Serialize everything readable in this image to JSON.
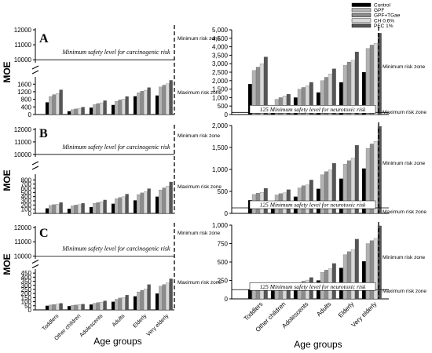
{
  "figure": {
    "ylabel": "MOE",
    "xlabel": "Age groups",
    "panel_letters": [
      "A",
      "B",
      "C"
    ],
    "carc_label": "Minimum safety level for carcinogenic risk",
    "neuro_label": "125 Minimum safety level for neurotoxic risk",
    "zone_min": "Minimum risk zone",
    "zone_max": "Maximum risk zone",
    "age_groups": [
      "Toddlers",
      "Other children",
      "Adolescents",
      "Adults",
      "Elderly",
      "Very elderly"
    ],
    "age_groups_right": [
      "Toddlers",
      "Other children",
      "Adolescents",
      "Adults",
      "Elderly",
      "Very elderly"
    ],
    "legend": [
      "Control",
      "GPF",
      "GPF+TGae",
      "CH 0.6%",
      "PEC 1%"
    ],
    "colors": [
      "#000000",
      "#b3b3b3",
      "#8c8c8c",
      "#d9d9d9",
      "#555555"
    ]
  },
  "chart_data": [
    {
      "type": "bar",
      "title": "A",
      "ylabel": "MOE",
      "categories": [
        "Toddlers",
        "Other children",
        "Adolescents",
        "Adults",
        "Elderly",
        "Very elderly"
      ],
      "axis_break": true,
      "ylim_lower": [
        0,
        1900
      ],
      "ylim_upper": [
        9800,
        12000
      ],
      "yticks": [
        0,
        400,
        800,
        1200,
        1600,
        10000,
        11000,
        12000
      ],
      "reference_line": 10000,
      "series": [
        {
          "name": "Control",
          "values": [
            640,
            170,
            360,
            500,
            960,
            1000
          ]
        },
        {
          "name": "GPF",
          "values": [
            950,
            260,
            520,
            700,
            1150,
            1450
          ]
        },
        {
          "name": "GPF+TGae",
          "values": [
            1050,
            300,
            580,
            770,
            1230,
            1550
          ]
        },
        {
          "name": "CH 0.6%",
          "values": [
            1100,
            330,
            620,
            820,
            1280,
            1620
          ]
        },
        {
          "name": "PEC 1%",
          "values": [
            1300,
            390,
            730,
            950,
            1420,
            1800
          ]
        }
      ]
    },
    {
      "type": "bar",
      "title": "B",
      "ylabel": "MOE",
      "categories": [
        "Toddlers",
        "Other children",
        "Adolescents",
        "Adults",
        "Elderly",
        "Very elderly"
      ],
      "axis_break": true,
      "ylim_lower": [
        0,
        900
      ],
      "ylim_upper": [
        9800,
        12000
      ],
      "yticks": [
        0,
        100,
        200,
        300,
        400,
        500,
        600,
        700,
        800,
        10000,
        11000,
        12000
      ],
      "reference_line": 10000,
      "series": [
        {
          "name": "Control",
          "values": [
            120,
            110,
            150,
            230,
            310,
            400
          ]
        },
        {
          "name": "GPF",
          "values": [
            190,
            180,
            240,
            350,
            450,
            560
          ]
        },
        {
          "name": "GPF+TGae",
          "values": [
            210,
            200,
            260,
            380,
            490,
            610
          ]
        },
        {
          "name": "CH 0.6%",
          "values": [
            220,
            210,
            280,
            400,
            520,
            650
          ]
        },
        {
          "name": "PEC 1%",
          "values": [
            260,
            240,
            320,
            460,
            590,
            750
          ]
        }
      ]
    },
    {
      "type": "bar",
      "title": "C",
      "ylabel": "MOE",
      "categories": [
        "Toddlers",
        "Other children",
        "Adolescents",
        "Adults",
        "Elderly",
        "Very elderly"
      ],
      "axis_break": true,
      "ylim_lower": [
        0,
        480
      ],
      "ylim_upper": [
        9800,
        12000
      ],
      "yticks": [
        0,
        50,
        100,
        150,
        200,
        250,
        300,
        350,
        400,
        450,
        10000,
        11000,
        12000
      ],
      "reference_line": 10000,
      "series": [
        {
          "name": "Control",
          "values": [
            50,
            45,
            65,
            100,
            165,
            200
          ]
        },
        {
          "name": "GPF",
          "values": [
            60,
            55,
            80,
            130,
            220,
            290
          ]
        },
        {
          "name": "GPF+TGae",
          "values": [
            65,
            60,
            90,
            145,
            240,
            310
          ]
        },
        {
          "name": "CH 0.6%",
          "values": [
            70,
            65,
            95,
            150,
            255,
            330
          ]
        },
        {
          "name": "PEC 1%",
          "values": [
            80,
            70,
            110,
            180,
            310,
            380
          ]
        }
      ]
    },
    {
      "type": "bar",
      "categories": [
        "Toddlers",
        "Other children",
        "Adolescents",
        "Adults",
        "Elderly",
        "Very elderly"
      ],
      "ylim": [
        0,
        5000
      ],
      "yticks": [
        0,
        500,
        1000,
        1500,
        2000,
        2500,
        3000,
        3500,
        4000,
        4500,
        5000
      ],
      "reference_line": 125,
      "series": [
        {
          "name": "Control",
          "values": [
            1800,
            500,
            1000,
            1300,
            1900,
            2500
          ]
        },
        {
          "name": "GPF",
          "values": [
            2600,
            900,
            1500,
            2000,
            2900,
            3900
          ]
        },
        {
          "name": "GPF+TGae",
          "values": [
            2800,
            1000,
            1600,
            2200,
            3100,
            4100
          ]
        },
        {
          "name": "CH 0.6%",
          "values": [
            3000,
            1100,
            1700,
            2400,
            3200,
            4200
          ]
        },
        {
          "name": "PEC 1%",
          "values": [
            3400,
            1200,
            1900,
            2700,
            3700,
            4800
          ]
        }
      ]
    },
    {
      "type": "bar",
      "categories": [
        "Toddlers",
        "Other children",
        "Adolescents",
        "Adults",
        "Elderly",
        "Very elderly"
      ],
      "ylim": [
        0,
        2000
      ],
      "yticks": [
        0,
        500,
        1000,
        1500,
        2000
      ],
      "reference_line": 125,
      "series": [
        {
          "name": "Control",
          "values": [
            300,
            280,
            380,
            560,
            790,
            1020
          ]
        },
        {
          "name": "GPF",
          "values": [
            430,
            420,
            580,
            880,
            1120,
            1480
          ]
        },
        {
          "name": "GPF+TGae",
          "values": [
            460,
            450,
            630,
            950,
            1200,
            1580
          ]
        },
        {
          "name": "CH 0.6%",
          "values": [
            480,
            470,
            650,
            990,
            1260,
            1640
          ]
        },
        {
          "name": "PEC 1%",
          "values": [
            570,
            540,
            760,
            1140,
            1550,
            1980
          ]
        }
      ]
    },
    {
      "type": "bar",
      "categories": [
        "Toddlers",
        "Other children",
        "Adolescents",
        "Adults",
        "Elderly",
        "Very elderly"
      ],
      "ylim": [
        0,
        1000
      ],
      "yticks": [
        0,
        250,
        500,
        750,
        1000
      ],
      "reference_line": 125,
      "series": [
        {
          "name": "Control",
          "values": [
            125,
            110,
            170,
            250,
            420,
            510
          ]
        },
        {
          "name": "GPF",
          "values": [
            150,
            140,
            220,
            360,
            600,
            750
          ]
        },
        {
          "name": "GPF+TGae",
          "values": [
            165,
            150,
            240,
            390,
            640,
            790
          ]
        },
        {
          "name": "CH 0.6%",
          "values": [
            175,
            160,
            255,
            410,
            670,
            820
          ]
        },
        {
          "name": "PEC 1%",
          "values": [
            200,
            180,
            290,
            480,
            810,
            990
          ]
        }
      ]
    }
  ]
}
